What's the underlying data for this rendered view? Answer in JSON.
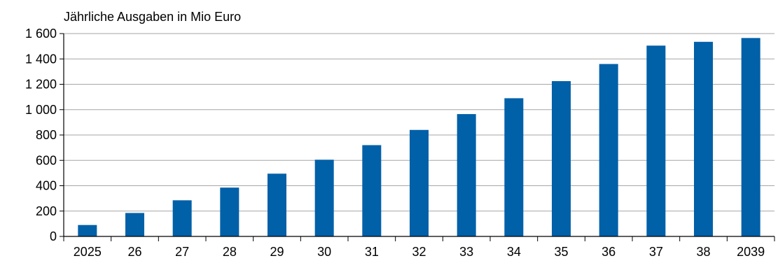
{
  "chart_data": {
    "type": "bar",
    "title": "Jährliche Ausgaben in Mio Euro",
    "xlabel": "",
    "ylabel": "",
    "categories": [
      "2025",
      "26",
      "27",
      "28",
      "29",
      "30",
      "31",
      "32",
      "33",
      "34",
      "35",
      "36",
      "37",
      "38",
      "2039"
    ],
    "values": [
      90,
      185,
      285,
      385,
      495,
      605,
      720,
      840,
      965,
      1090,
      1225,
      1360,
      1505,
      1535,
      1565
    ],
    "ylim": [
      0,
      1600
    ],
    "y_ticks": [
      0,
      200,
      400,
      600,
      800,
      1000,
      1200,
      1400,
      1600
    ],
    "y_tick_labels": [
      "0",
      "200",
      "400",
      "600",
      "800",
      "1 000",
      "1 200",
      "1 400",
      "1 600"
    ],
    "grid": true,
    "legend": "none",
    "colors": {
      "bar": "#0060a8",
      "grid": "#a6a6a6",
      "axis": "#000000"
    }
  }
}
